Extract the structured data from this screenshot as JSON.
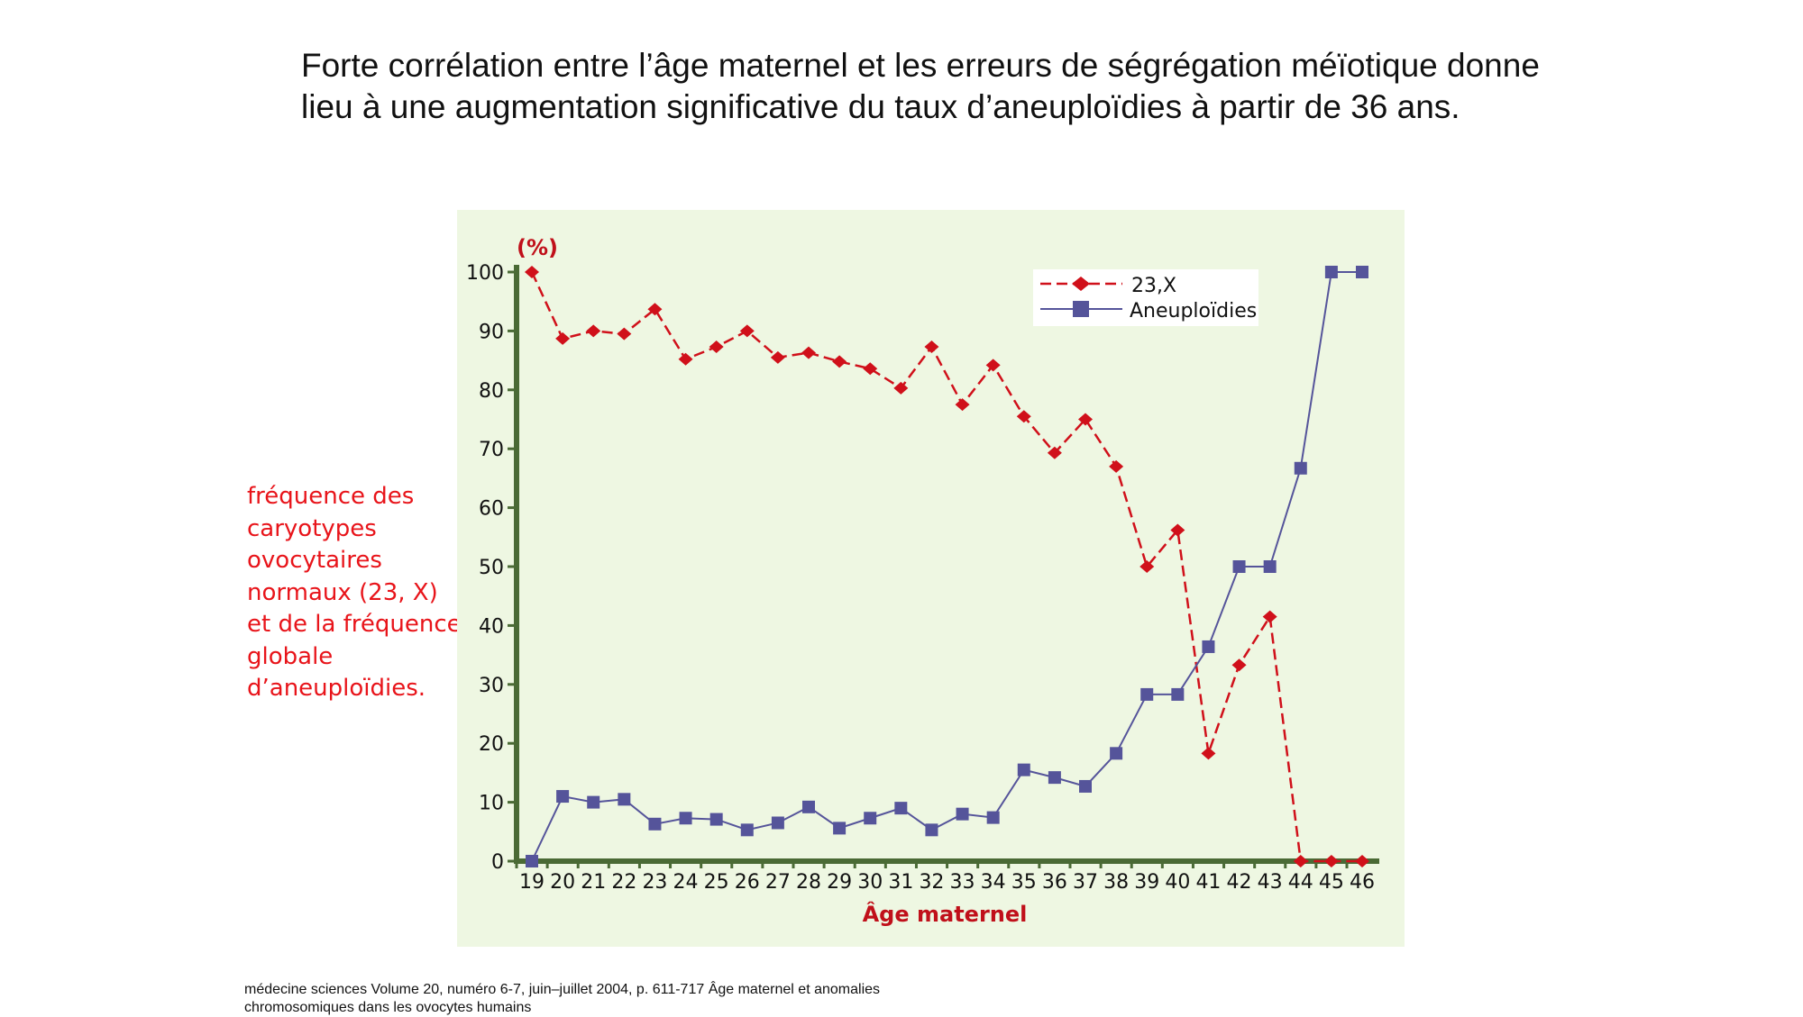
{
  "slide": {
    "title": "Forte corrélation entre l’âge maternel et les erreurs de ségrégation méïotique donne lieu à une augmentation significative du taux d’aneuploïdies à partir de 36 ans.",
    "side_note": "fréquence des caryotypes ovocytaires normaux (23, X) et de la fréquence globale d’aneuploïdies.",
    "citation": "médecine sciences  Volume 20, numéro 6-7, juin–juillet 2004, p. 611-717  Âge maternel et anomalies chromosomiques dans les ovocytes humains"
  },
  "chart_data": {
    "type": "line",
    "title": "",
    "xlabel": "Âge maternel",
    "ylabel": "(%)",
    "x": [
      19,
      20,
      21,
      22,
      23,
      24,
      25,
      26,
      27,
      28,
      29,
      30,
      31,
      32,
      33,
      34,
      35,
      36,
      37,
      38,
      39,
      40,
      41,
      42,
      43,
      44,
      45,
      46
    ],
    "ylim": [
      0,
      100
    ],
    "yticks": [
      0,
      10,
      20,
      30,
      40,
      50,
      60,
      70,
      80,
      90,
      100
    ],
    "grid": false,
    "legend_position": "top-right",
    "background": "#eef7e2",
    "axis_color": "#4a6a35",
    "series": [
      {
        "name": "23,X",
        "color": "#d0101a",
        "style": "dashed",
        "marker": "diamond",
        "values": [
          100,
          88.7,
          90,
          89.5,
          93.7,
          85.2,
          87.3,
          90,
          85.5,
          86.3,
          84.8,
          83.6,
          80.3,
          87.3,
          77.5,
          84.2,
          75.5,
          69.3,
          75,
          67,
          50,
          56.2,
          18.3,
          33.3,
          41.5,
          0,
          0,
          0
        ]
      },
      {
        "name": "Aneuploïdies",
        "color": "#55549a",
        "style": "solid",
        "marker": "square",
        "values": [
          0,
          11,
          10,
          10.5,
          6.3,
          7.3,
          7.1,
          5.3,
          6.5,
          9.2,
          5.6,
          7.3,
          9,
          5.3,
          8,
          7.4,
          15.5,
          14.2,
          12.7,
          18.3,
          28.3,
          28.3,
          36.4,
          50,
          50,
          66.7,
          100,
          100
        ]
      }
    ]
  }
}
